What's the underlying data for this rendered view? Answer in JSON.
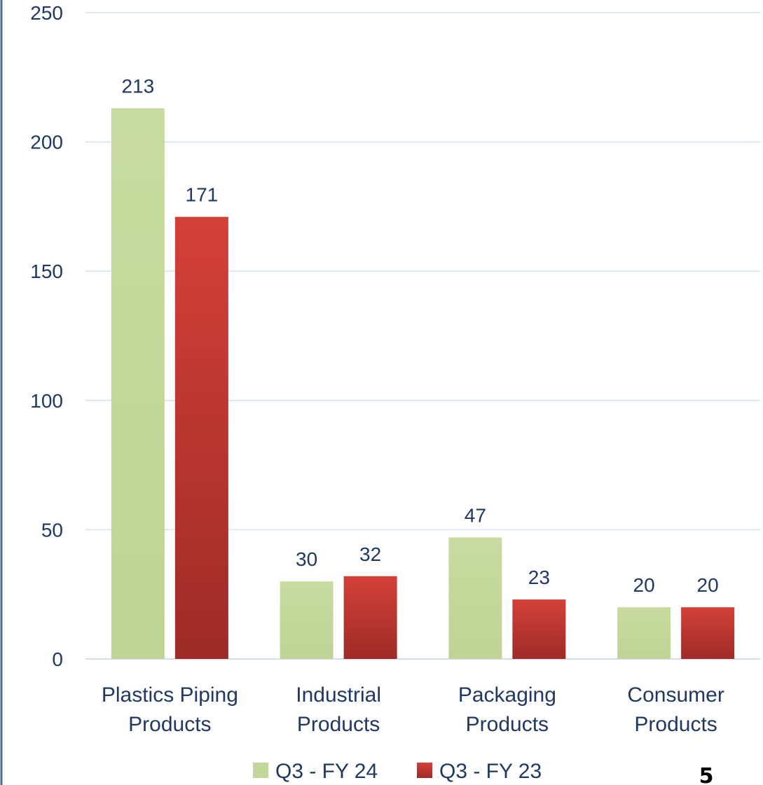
{
  "chart_data": {
    "type": "bar",
    "categories": [
      [
        "Plastics Piping",
        "Products"
      ],
      [
        "Industrial",
        "Products"
      ],
      [
        "Packaging",
        "Products"
      ],
      [
        "Consumer",
        "Products"
      ]
    ],
    "series": [
      {
        "name": "Q3 - FY 24",
        "values": [
          213,
          30,
          47,
          20
        ],
        "color": "#c4d79b"
      },
      {
        "name": "Q3 - FY 23",
        "values": [
          171,
          32,
          23,
          20
        ],
        "color": "#c0392b"
      }
    ],
    "ylim": [
      0,
      250
    ],
    "yticks": [
      0,
      50,
      100,
      150,
      200,
      250
    ],
    "grid": true,
    "legend_position": "bottom-center",
    "title": "",
    "xlabel": "",
    "ylabel": ""
  },
  "page_number": "5",
  "colors": {
    "axis_text": "#1f3864",
    "gridline": "#d6e2f0",
    "frame": "#4a6f96"
  }
}
